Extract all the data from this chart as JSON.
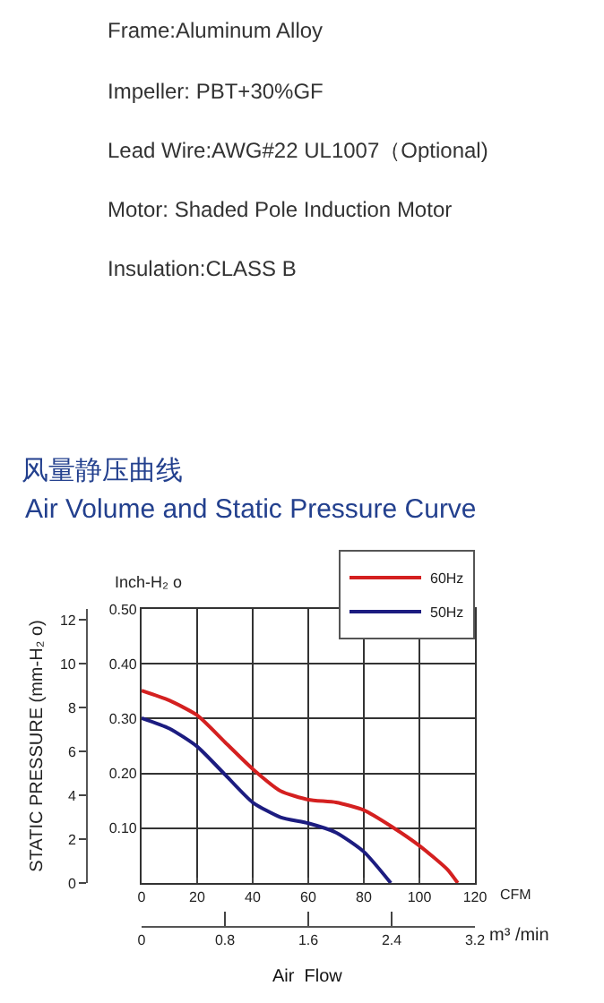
{
  "chart_data": {
    "type": "line",
    "title": "风量静压曲线",
    "subtitle": "Air Volume and Static Pressure Curve",
    "ylabel": "Inch-H₂ o",
    "y2label": "STATIC PRESSURE (mm-H₂ o)",
    "xlabel": "CFM",
    "x2label": "m³ /min",
    "annotations": [
      "Frame:Aluminum Alloy",
      "Impeller: PBT+30%GF",
      "Lead Wire:AWG#22 UL1007（Optional)",
      "Motor: Shaded Pole Induction Motor",
      "Insulation:CLASS B",
      "Air  Flow"
    ],
    "series": [
      {
        "name": "60Hz",
        "color": "#d42020",
        "x": [
          0,
          10,
          20,
          30,
          40,
          50,
          60,
          70,
          80,
          90,
          100,
          110,
          113.8
        ],
        "values": [
          0.351,
          0.333,
          0.306,
          0.257,
          0.208,
          0.168,
          0.152,
          0.147,
          0.133,
          0.103,
          0.068,
          0.025,
          0
        ]
      },
      {
        "name": "50Hz",
        "color": "#1c1c80",
        "x": [
          0,
          10,
          20,
          30,
          40,
          50,
          60,
          70,
          80,
          89.7
        ],
        "values": [
          0.301,
          0.282,
          0.249,
          0.198,
          0.147,
          0.12,
          0.109,
          0.092,
          0.057,
          0
        ]
      }
    ],
    "xlim": [
      0,
      120
    ],
    "xticks": [
      0,
      20,
      40,
      60,
      80,
      100,
      120
    ],
    "ylim": [
      0,
      0.5
    ],
    "yticks": [
      {
        "value": 0,
        "label": null
      },
      {
        "value": 0.1,
        "label": "0.10"
      },
      {
        "value": 0.2,
        "label": "0.20"
      },
      {
        "value": 0.3,
        "label": "0.30"
      },
      {
        "value": 0.4,
        "label": "0.40"
      },
      {
        "value": 0.5,
        "label": "0.50"
      }
    ],
    "y2lim": [
      0,
      12.5
    ],
    "y2ticks": [
      0,
      2,
      4,
      6,
      8,
      10,
      12
    ],
    "x2lim": [
      0,
      3.2
    ],
    "x2ticks": [
      0,
      0.8,
      1.6,
      2.4,
      3.2
    ],
    "grid": true,
    "legend": "top right",
    "marker": "none",
    "line_style": "solid"
  }
}
